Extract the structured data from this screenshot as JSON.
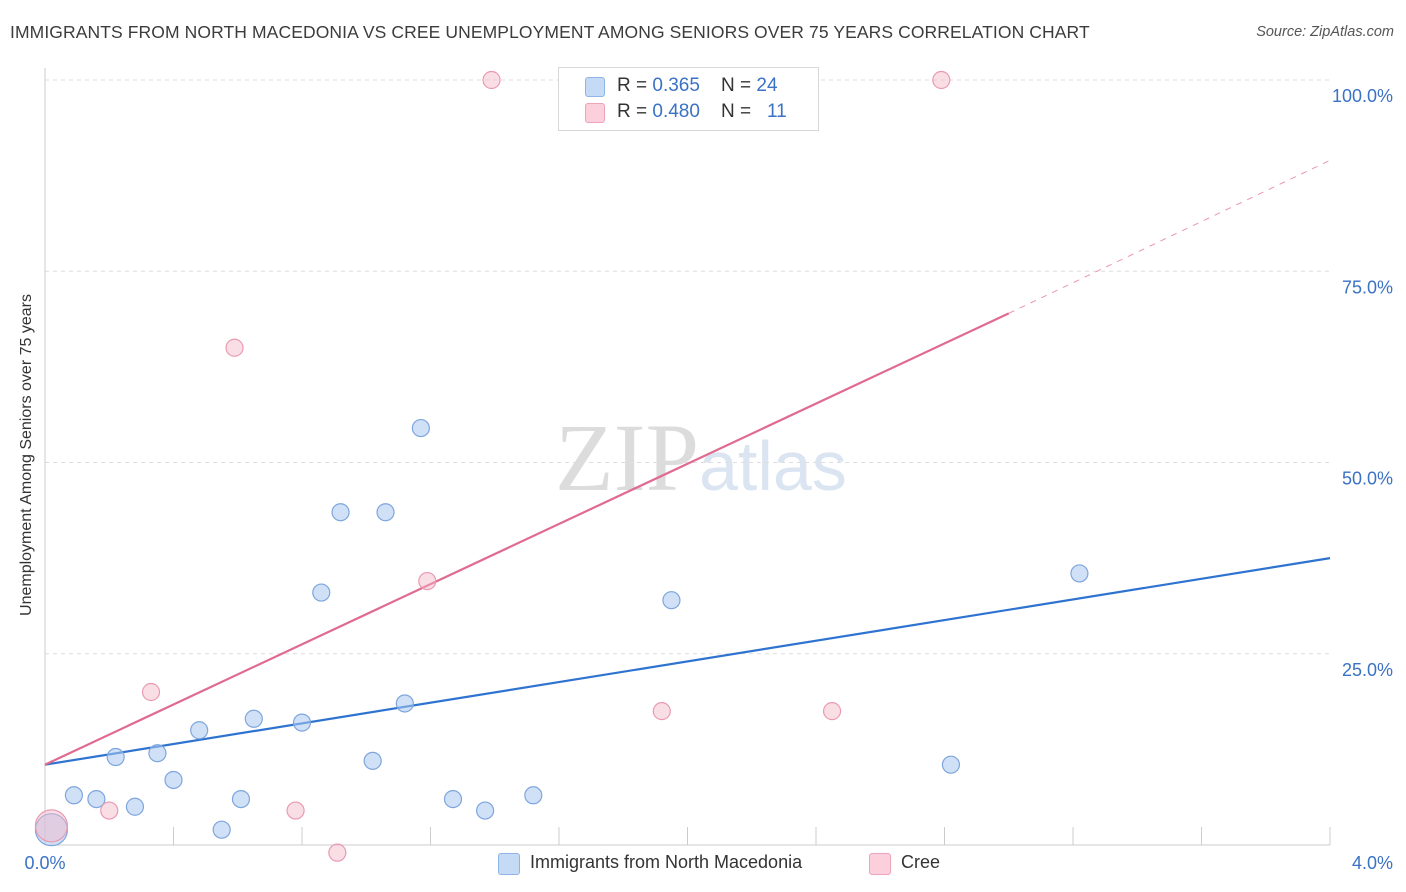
{
  "title": "IMMIGRANTS FROM NORTH MACEDONIA VS CREE UNEMPLOYMENT AMONG SENIORS OVER 75 YEARS CORRELATION CHART",
  "source": "Source: ZipAtlas.com",
  "watermark": {
    "zip": "ZIP",
    "atlas": "atlas"
  },
  "legend": {
    "rows": [
      {
        "r_label": "R = ",
        "r_value": "0.365",
        "n_label": "N = ",
        "n_value": "24",
        "color": "#a9c8f0"
      },
      {
        "r_label": "R = ",
        "r_value": "0.480",
        "n_label": "N = ",
        "n_value": "11",
        "color": "#f5b6c8"
      }
    ]
  },
  "bottom_legend": [
    {
      "label": "Immigrants from North Macedonia",
      "color": "#a9c8f0"
    },
    {
      "label": "Cree",
      "color": "#f5b6c8"
    }
  ],
  "chart_data": {
    "type": "scatter",
    "title": "IMMIGRANTS FROM NORTH MACEDONIA VS CREE UNEMPLOYMENT AMONG SENIORS OVER 75 YEARS CORRELATION CHART",
    "xlabel": "",
    "ylabel": "Unemployment Among Seniors over 75 years",
    "xlim": [
      0,
      4.0
    ],
    "ylim": [
      0,
      100
    ],
    "x_tick_labels": [
      "0.0%",
      "4.0%"
    ],
    "y_tick_labels": [
      "25.0%",
      "50.0%",
      "75.0%",
      "100.0%"
    ],
    "y_ticks": [
      25,
      50,
      75,
      100
    ],
    "series": [
      {
        "name": "Immigrants from North Macedonia",
        "color": "#a9c8f0",
        "line_color": "#2f73d1",
        "trend": {
          "x": [
            0,
            4.0
          ],
          "y": [
            10.5,
            37.5
          ]
        },
        "points": [
          {
            "x": 0.02,
            "y": 2.0,
            "big": true
          },
          {
            "x": 0.09,
            "y": 6.5
          },
          {
            "x": 0.16,
            "y": 6.0
          },
          {
            "x": 0.22,
            "y": 11.5
          },
          {
            "x": 0.28,
            "y": 5.0
          },
          {
            "x": 0.35,
            "y": 12.0
          },
          {
            "x": 0.4,
            "y": 8.5
          },
          {
            "x": 0.48,
            "y": 15.0
          },
          {
            "x": 0.55,
            "y": 2.0
          },
          {
            "x": 0.61,
            "y": 6.0
          },
          {
            "x": 0.65,
            "y": 16.5
          },
          {
            "x": 0.8,
            "y": 16.0
          },
          {
            "x": 0.86,
            "y": 33.0
          },
          {
            "x": 0.92,
            "y": 43.5
          },
          {
            "x": 1.02,
            "y": 11.0
          },
          {
            "x": 1.06,
            "y": 43.5
          },
          {
            "x": 1.12,
            "y": 18.5
          },
          {
            "x": 1.17,
            "y": 54.5
          },
          {
            "x": 1.27,
            "y": 6.0
          },
          {
            "x": 1.37,
            "y": 4.5
          },
          {
            "x": 1.52,
            "y": 6.5
          },
          {
            "x": 1.95,
            "y": 32.0
          },
          {
            "x": 2.82,
            "y": 10.5
          },
          {
            "x": 3.22,
            "y": 35.5
          }
        ]
      },
      {
        "name": "Cree",
        "color": "#f5b6c8",
        "line_color": "#e06a90",
        "trend": {
          "x": [
            0,
            3.0
          ],
          "y": [
            10.5,
            69.5
          ]
        },
        "trend_dashed": {
          "x": [
            3.0,
            4.0
          ],
          "y": [
            69.5,
            89.5
          ]
        },
        "points": [
          {
            "x": 0.02,
            "y": 2.5,
            "big": true
          },
          {
            "x": 0.2,
            "y": 4.5
          },
          {
            "x": 0.33,
            "y": 20.0
          },
          {
            "x": 0.59,
            "y": 65.0
          },
          {
            "x": 0.78,
            "y": 4.5
          },
          {
            "x": 0.91,
            "y": -1.0
          },
          {
            "x": 1.19,
            "y": 34.5
          },
          {
            "x": 1.39,
            "y": 100.0
          },
          {
            "x": 1.92,
            "y": 17.5
          },
          {
            "x": 2.45,
            "y": 17.5
          },
          {
            "x": 2.79,
            "y": 100.0
          }
        ]
      }
    ]
  }
}
